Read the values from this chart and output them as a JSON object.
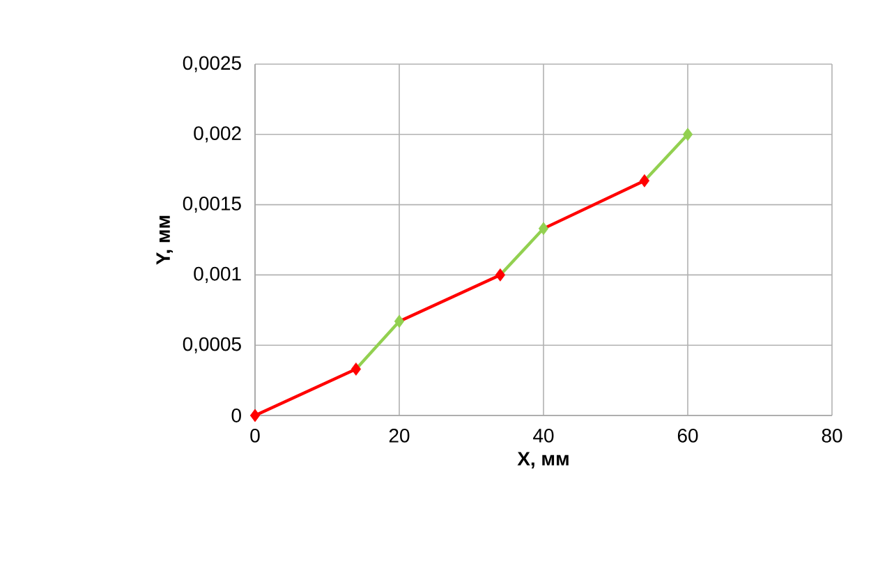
{
  "chart_data": {
    "type": "line",
    "xlabel": "X, мм",
    "ylabel": "Y, мм",
    "xlim": [
      0,
      80
    ],
    "xticks": [
      0,
      20,
      40,
      60,
      80
    ],
    "ylim": [
      0,
      0.0025
    ],
    "yticks": [
      {
        "value": 0,
        "label": "0"
      },
      {
        "value": 0.0005,
        "label": "0,0005"
      },
      {
        "value": 0.001,
        "label": "0,001"
      },
      {
        "value": 0.0015,
        "label": "0,0015"
      },
      {
        "value": 0.002,
        "label": "0,002"
      },
      {
        "value": 0.0025,
        "label": "0,0025"
      }
    ],
    "grid": true,
    "series": [
      {
        "color": "#ff0000",
        "marker": "none",
        "x": [
          0,
          14,
          17,
          20,
          34,
          37,
          40,
          54
        ],
        "values": [
          0,
          0.00033,
          null,
          0.00067,
          0.001,
          null,
          0.00133,
          0.00167
        ]
      },
      {
        "color": "#92d050",
        "marker": "none",
        "x": [
          14,
          20,
          27,
          34,
          40,
          47,
          54,
          60
        ],
        "values": [
          0.00033,
          0.00067,
          null,
          0.001,
          0.00133,
          null,
          0.00167,
          0.002
        ]
      },
      {
        "type": "scatter",
        "color": "#ff0000",
        "marker": "diamond",
        "x": [
          0,
          14,
          34,
          54
        ],
        "values": [
          0,
          0.00033,
          0.001,
          0.00167
        ]
      },
      {
        "type": "scatter",
        "color": "#92d050",
        "marker": "diamond",
        "x": [
          20,
          40,
          60
        ],
        "values": [
          0.00067,
          0.00133,
          0.002
        ]
      }
    ]
  }
}
